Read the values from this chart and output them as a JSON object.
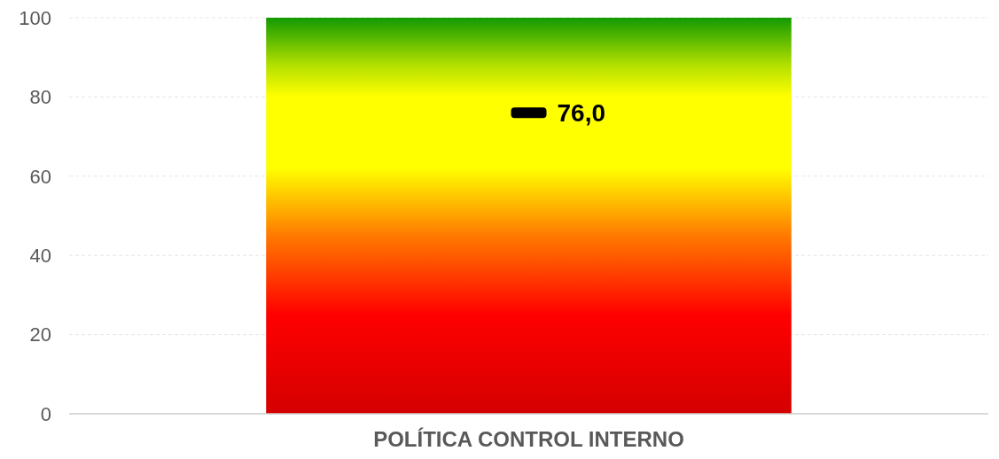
{
  "chart_data": {
    "type": "bar",
    "categories": [
      "POLÍTICA CONTROL INTERNO"
    ],
    "series": [
      {
        "color": "#ffff00",
        "values": [
          100
        ]
      },
      {
        "type": "scatter",
        "color": "#000000",
        "x": [
          "POLÍTICA CONTROL INTERNO"
        ],
        "values": [
          76
        ],
        "value_labels": [
          "76,0"
        ]
      }
    ],
    "ylim": [
      0,
      100
    ],
    "yticks": [
      0,
      20,
      40,
      60,
      80,
      100
    ],
    "grid": "y"
  }
}
